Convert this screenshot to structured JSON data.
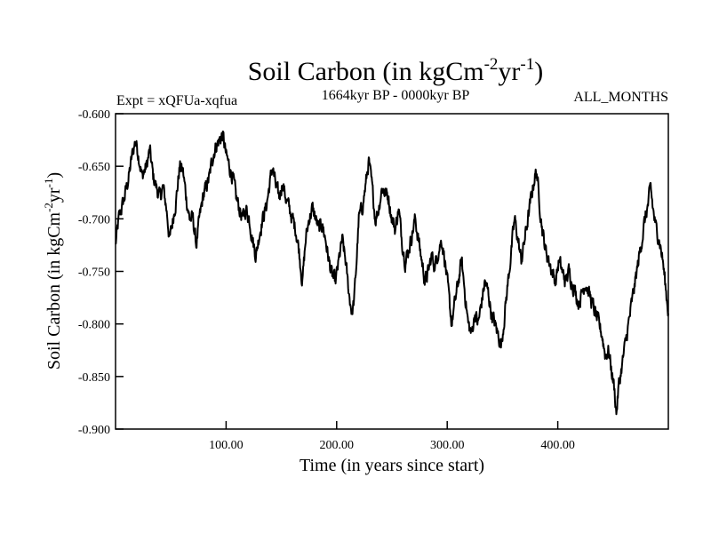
{
  "chart_data": {
    "type": "line",
    "title": "Soil Carbon (in kgCm",
    "title_sup1": "-2",
    "title_mid": "yr",
    "title_sup2": "-1",
    "title_end": ")",
    "subtitle_left": "Expt = xQFUa-xqfua",
    "subtitle_center": "1664kyr BP - 0000kyr BP",
    "subtitle_right": "ALL_MONTHS",
    "xlabel": "Time (in years since start)",
    "ylabel_main": "Soil Carbon (in kgCm",
    "ylabel_sup1": "-2",
    "ylabel_mid": "yr",
    "ylabel_sup2": "-1",
    "ylabel_end": ")",
    "xlim": [
      0,
      500
    ],
    "ylim": [
      -0.9,
      -0.6
    ],
    "xticks": [
      100,
      200,
      300,
      400
    ],
    "xtick_labels": [
      "100.00",
      "200.00",
      "300.00",
      "400.00"
    ],
    "yticks": [
      -0.6,
      -0.65,
      -0.7,
      -0.75,
      -0.8,
      -0.85,
      -0.9
    ],
    "ytick_labels": [
      "-0.600",
      "-0.650",
      "-0.700",
      "-0.750",
      "-0.800",
      "-0.850",
      "-0.900"
    ],
    "series": [
      {
        "name": "Soil Carbon",
        "color": "#000000",
        "anchors": [
          [
            0,
            -0.725
          ],
          [
            3,
            -0.7
          ],
          [
            8,
            -0.68
          ],
          [
            12,
            -0.66
          ],
          [
            15,
            -0.64
          ],
          [
            18,
            -0.625
          ],
          [
            21,
            -0.64
          ],
          [
            24,
            -0.66
          ],
          [
            28,
            -0.65
          ],
          [
            31,
            -0.635
          ],
          [
            34,
            -0.66
          ],
          [
            37,
            -0.67
          ],
          [
            40,
            -0.68
          ],
          [
            43,
            -0.67
          ],
          [
            46,
            -0.69
          ],
          [
            49,
            -0.72
          ],
          [
            52,
            -0.7
          ],
          [
            55,
            -0.68
          ],
          [
            58,
            -0.65
          ],
          [
            61,
            -0.655
          ],
          [
            64,
            -0.68
          ],
          [
            67,
            -0.7
          ],
          [
            70,
            -0.7
          ],
          [
            73,
            -0.725
          ],
          [
            76,
            -0.7
          ],
          [
            79,
            -0.68
          ],
          [
            82,
            -0.67
          ],
          [
            85,
            -0.66
          ],
          [
            88,
            -0.64
          ],
          [
            91,
            -0.63
          ],
          [
            94,
            -0.625
          ],
          [
            97,
            -0.62
          ],
          [
            100,
            -0.64
          ],
          [
            103,
            -0.65
          ],
          [
            106,
            -0.66
          ],
          [
            109,
            -0.68
          ],
          [
            112,
            -0.69
          ],
          [
            115,
            -0.7
          ],
          [
            118,
            -0.69
          ],
          [
            121,
            -0.7
          ],
          [
            124,
            -0.72
          ],
          [
            127,
            -0.735
          ],
          [
            130,
            -0.715
          ],
          [
            133,
            -0.7
          ],
          [
            136,
            -0.69
          ],
          [
            139,
            -0.67
          ],
          [
            142,
            -0.65
          ],
          [
            145,
            -0.67
          ],
          [
            148,
            -0.68
          ],
          [
            151,
            -0.665
          ],
          [
            154,
            -0.68
          ],
          [
            157,
            -0.69
          ],
          [
            160,
            -0.7
          ],
          [
            163,
            -0.71
          ],
          [
            166,
            -0.73
          ],
          [
            169,
            -0.76
          ],
          [
            172,
            -0.72
          ],
          [
            175,
            -0.7
          ],
          [
            178,
            -0.69
          ],
          [
            181,
            -0.7
          ],
          [
            184,
            -0.71
          ],
          [
            187,
            -0.705
          ],
          [
            190,
            -0.72
          ],
          [
            193,
            -0.74
          ],
          [
            196,
            -0.755
          ],
          [
            199,
            -0.76
          ],
          [
            202,
            -0.74
          ],
          [
            205,
            -0.72
          ],
          [
            208,
            -0.74
          ],
          [
            211,
            -0.77
          ],
          [
            214,
            -0.79
          ],
          [
            216,
            -0.775
          ],
          [
            218,
            -0.74
          ],
          [
            220,
            -0.7
          ],
          [
            223,
            -0.69
          ],
          [
            226,
            -0.67
          ],
          [
            229,
            -0.645
          ],
          [
            232,
            -0.67
          ],
          [
            235,
            -0.7
          ],
          [
            238,
            -0.69
          ],
          [
            241,
            -0.67
          ],
          [
            244,
            -0.675
          ],
          [
            247,
            -0.68
          ],
          [
            250,
            -0.7
          ],
          [
            253,
            -0.71
          ],
          [
            256,
            -0.69
          ],
          [
            259,
            -0.72
          ],
          [
            262,
            -0.74
          ],
          [
            265,
            -0.73
          ],
          [
            268,
            -0.715
          ],
          [
            271,
            -0.7
          ],
          [
            274,
            -0.72
          ],
          [
            277,
            -0.74
          ],
          [
            280,
            -0.76
          ],
          [
            283,
            -0.75
          ],
          [
            286,
            -0.735
          ],
          [
            289,
            -0.745
          ],
          [
            292,
            -0.73
          ],
          [
            295,
            -0.72
          ],
          [
            298,
            -0.74
          ],
          [
            301,
            -0.77
          ],
          [
            304,
            -0.8
          ],
          [
            307,
            -0.78
          ],
          [
            310,
            -0.76
          ],
          [
            313,
            -0.74
          ],
          [
            316,
            -0.77
          ],
          [
            319,
            -0.8
          ],
          [
            322,
            -0.81
          ],
          [
            325,
            -0.79
          ],
          [
            328,
            -0.8
          ],
          [
            331,
            -0.78
          ],
          [
            334,
            -0.76
          ],
          [
            337,
            -0.77
          ],
          [
            340,
            -0.79
          ],
          [
            343,
            -0.8
          ],
          [
            346,
            -0.81
          ],
          [
            349,
            -0.82
          ],
          [
            352,
            -0.79
          ],
          [
            355,
            -0.76
          ],
          [
            358,
            -0.73
          ],
          [
            361,
            -0.7
          ],
          [
            364,
            -0.72
          ],
          [
            367,
            -0.74
          ],
          [
            370,
            -0.72
          ],
          [
            373,
            -0.7
          ],
          [
            376,
            -0.68
          ],
          [
            379,
            -0.66
          ],
          [
            381,
            -0.655
          ],
          [
            383,
            -0.68
          ],
          [
            386,
            -0.71
          ],
          [
            389,
            -0.73
          ],
          [
            392,
            -0.74
          ],
          [
            395,
            -0.75
          ],
          [
            398,
            -0.76
          ],
          [
            401,
            -0.74
          ],
          [
            404,
            -0.75
          ],
          [
            407,
            -0.76
          ],
          [
            410,
            -0.75
          ],
          [
            413,
            -0.76
          ],
          [
            416,
            -0.77
          ],
          [
            419,
            -0.78
          ],
          [
            422,
            -0.77
          ],
          [
            425,
            -0.76
          ],
          [
            428,
            -0.77
          ],
          [
            431,
            -0.78
          ],
          [
            434,
            -0.79
          ],
          [
            437,
            -0.8
          ],
          [
            440,
            -0.81
          ],
          [
            443,
            -0.83
          ],
          [
            446,
            -0.825
          ],
          [
            448,
            -0.84
          ],
          [
            451,
            -0.86
          ],
          [
            453,
            -0.885
          ],
          [
            455,
            -0.86
          ],
          [
            458,
            -0.84
          ],
          [
            461,
            -0.82
          ],
          [
            464,
            -0.8
          ],
          [
            467,
            -0.78
          ],
          [
            470,
            -0.76
          ],
          [
            473,
            -0.74
          ],
          [
            476,
            -0.72
          ],
          [
            479,
            -0.7
          ],
          [
            482,
            -0.685
          ],
          [
            484,
            -0.67
          ],
          [
            486,
            -0.69
          ],
          [
            489,
            -0.71
          ],
          [
            492,
            -0.72
          ],
          [
            495,
            -0.74
          ],
          [
            498,
            -0.77
          ],
          [
            500,
            -0.79
          ]
        ]
      }
    ]
  }
}
